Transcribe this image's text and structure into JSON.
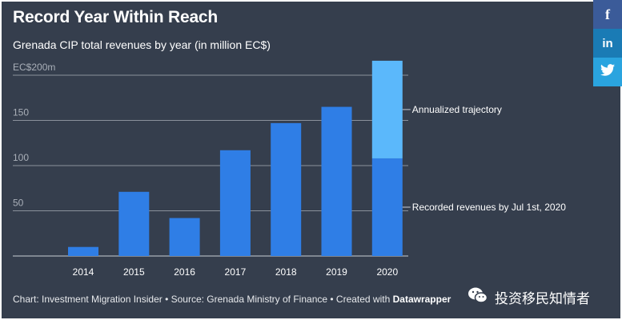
{
  "header": {
    "title": "Record Year Within Reach",
    "subtitle": "Grenada CIP total revenues by year (in million EC$)"
  },
  "chart_data": {
    "type": "bar",
    "stacked": true,
    "categories": [
      "2014",
      "2015",
      "2016",
      "2017",
      "2018",
      "2019",
      "2020"
    ],
    "series": [
      {
        "name": "Recorded revenues by Jul 1st, 2020",
        "values": [
          10,
          71,
          42,
          117,
          147,
          165,
          108
        ],
        "color": "#2f7ee6"
      },
      {
        "name": "Annualized trajectory",
        "values": [
          0,
          0,
          0,
          0,
          0,
          0,
          108
        ],
        "color": "#5bb8fb"
      }
    ],
    "yticks": [
      {
        "value": 50,
        "label": "50"
      },
      {
        "value": 100,
        "label": "100"
      },
      {
        "value": 150,
        "label": "150"
      },
      {
        "value": 200,
        "label": "EC$200m"
      }
    ],
    "ylim": [
      0,
      200
    ],
    "grid": true,
    "legend_placement": "right"
  },
  "footer": {
    "prefix": "Chart: Investment Migration Insider • Source: Grenada Ministry of Finance • Created with ",
    "tool": "Datawrapper"
  },
  "social": {
    "facebook": "f",
    "linkedin": "in",
    "twitter": "twitter-bird"
  },
  "watermark": {
    "text": "投资移民知情者",
    "icon": "wechat-icon"
  },
  "colors": {
    "background": "#353e4d",
    "grid": "#8a919c"
  }
}
